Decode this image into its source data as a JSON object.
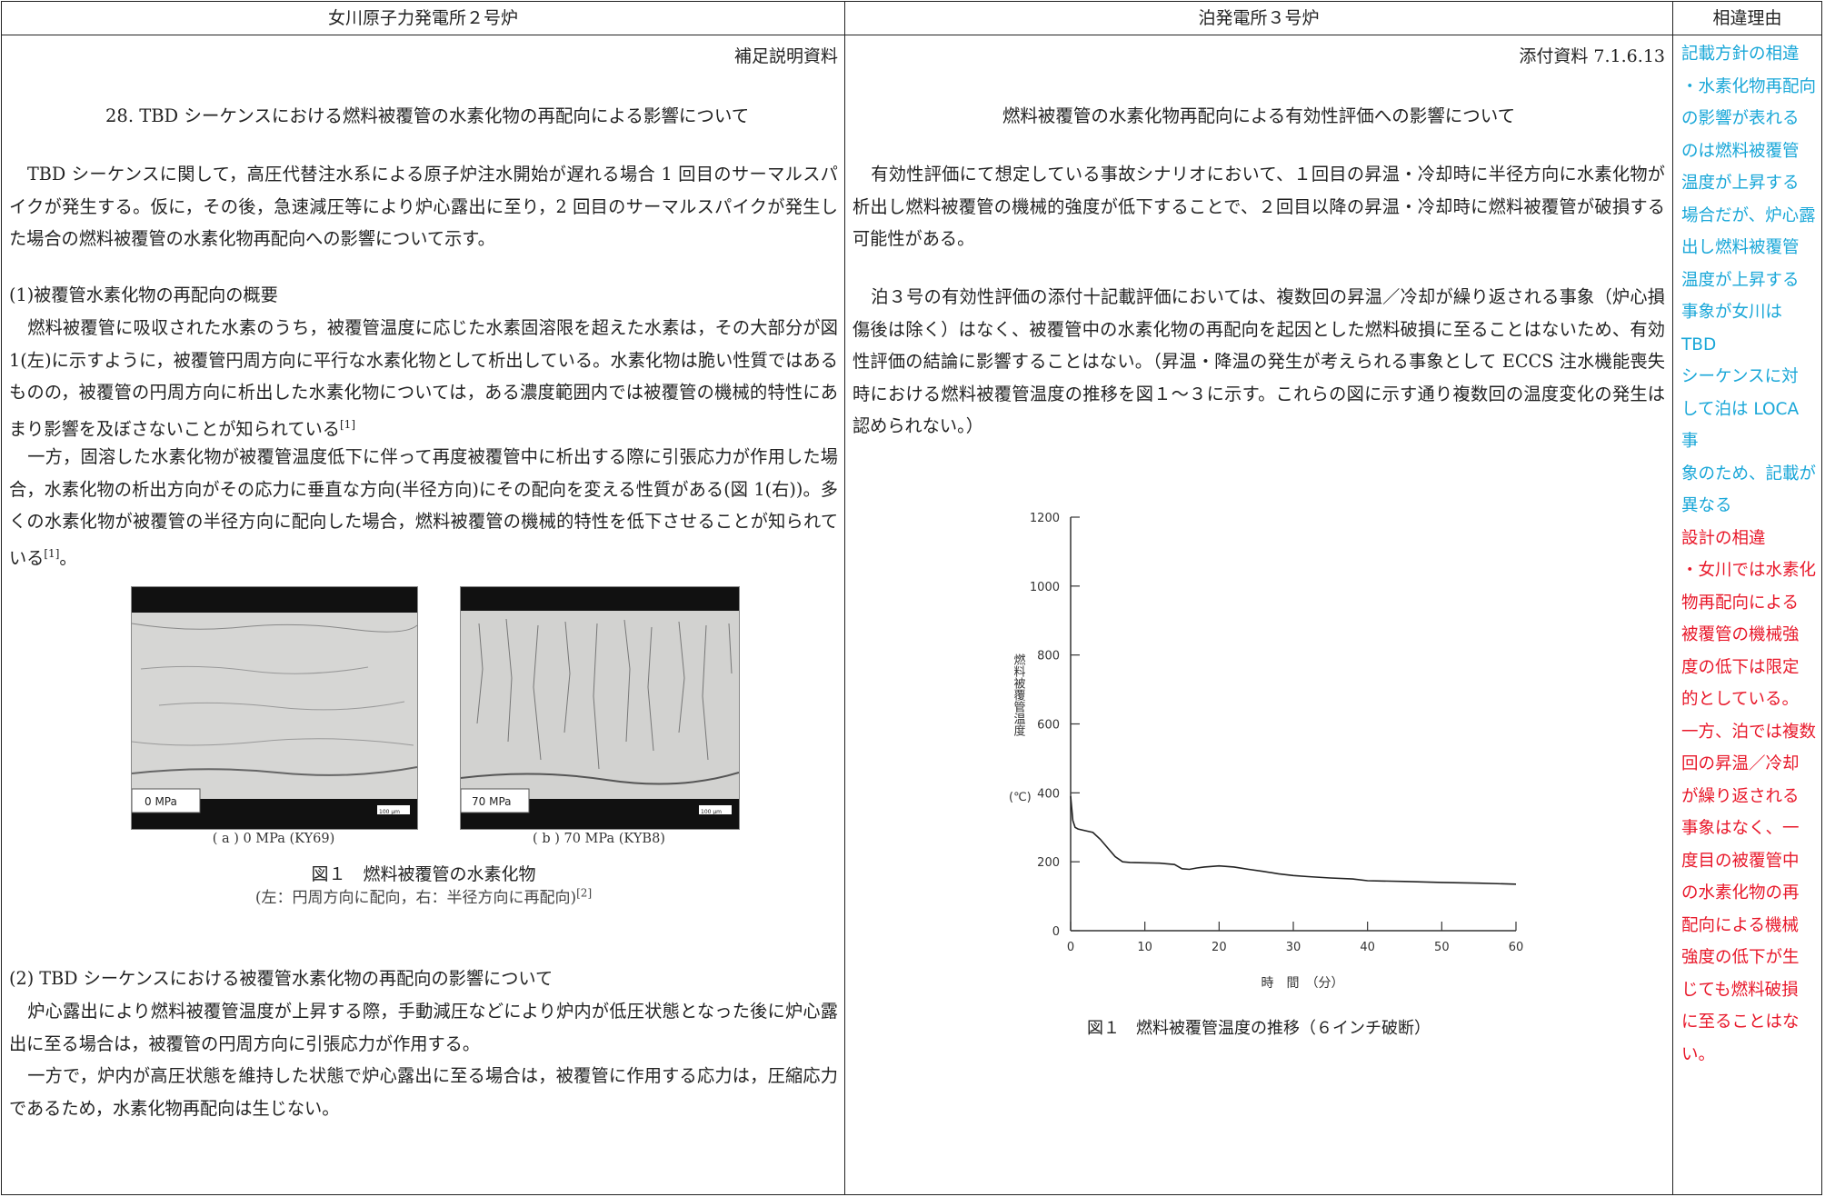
{
  "header": {
    "col1": "女川原子力発電所２号炉",
    "col2": "泊発電所３号炉",
    "col3": "相違理由"
  },
  "left": {
    "supplementary_label": "補足説明資料",
    "title": "28. TBD シーケンスにおける燃料被覆管の水素化物の再配向による影響について",
    "intro": "TBD シーケンスに関して，高圧代替注水系による原子炉注水開始が遅れる場合 1 回目のサーマルスパイクが発生する。仮に，その後，急速減圧等により炉心露出に至り，2 回目のサーマルスパイクが発生した場合の燃料被覆管の水素化物再配向への影響について示す。",
    "section1_heading": "(1)被覆管水素化物の再配向の概要",
    "section1_p1": "燃料被覆管に吸収された水素のうち，被覆管温度に応じた水素固溶限を超えた水素は，その大部分が図 1(左)に示すように，被覆管円周方向に平行な水素化物として析出している。水素化物は脆い性質ではあるものの，被覆管の円周方向に析出した水素化物については，ある濃度範囲内では被覆管の機械的特性にあまり影響を及ぼさないことが知られている",
    "section1_p1_ref": "[1]",
    "section1_p2": "一方，固溶した水素化物が被覆管温度低下に伴って再度被覆管中に析出する際に引張応力が作用した場合，水素化物の析出方向がその応力に垂直な方向(半径方向)にその配向を変える性質がある(図 1(右))。多くの水素化物が被覆管の半径方向に配向した場合，燃料被覆管の機械的特性を低下させることが知られている",
    "section1_p2_ref": "[1]",
    "section1_p2_end": "。",
    "figure": {
      "panel_a_tag": "0 MPa",
      "panel_b_tag": "70 MPa",
      "scale_a": "100 μm",
      "scale_b": "100 μm",
      "caption_a": "( a )  0 MPa (KY69)",
      "caption_b": "( b )  70 MPa (KYB8)",
      "caption": "図１　燃料被覆管の水素化物",
      "subcaption": "(左：円周方向に配向，右：半径方向に再配向)",
      "subcaption_ref": "[2]"
    },
    "section2_heading": "(2) TBD シーケンスにおける被覆管水素化物の再配向の影響について",
    "section2_p1": "炉心露出により燃料被覆管温度が上昇する際，手動減圧などにより炉内が低圧状態となった後に炉心露出に至る場合は，被覆管の円周方向に引張応力が作用する。",
    "section2_p2": "一方で，炉内が高圧状態を維持した状態で炉心露出に至る場合は，被覆管に作用する応力は，圧縮応力であるため，水素化物再配向は生じない。"
  },
  "middle": {
    "attachment_label": "添付資料 7.1.6.13",
    "title": "燃料被覆管の水素化物再配向による有効性評価への影響について",
    "p1": "有効性評価にて想定している事故シナリオにおいて、１回目の昇温・冷却時に半径方向に水素化物が析出し燃料被覆管の機械的強度が低下することで、２回目以降の昇温・冷却時に燃料被覆管が破損する可能性がある。",
    "p2": "泊３号の有効性評価の添付十記載評価においては、複数回の昇温／冷却が繰り返される事象（炉心損傷後は除く）はなく、被覆管中の水素化物の再配向を起因とした燃料破損に至ることはないため、有効性評価の結論に影響することはない。（昇温・降温の発生が考えられる事象として ECCS 注水機能喪失時における燃料被覆管温度の推移を図１～３に示す。これらの図に示す通り複数回の温度変化の発生は認められない。）",
    "chart_caption": "図１　燃料被覆管温度の推移（６インチ破断）"
  },
  "right": {
    "lines": [
      {
        "text": "記載方針の相違",
        "color": "cyan"
      },
      {
        "text": "・水素化物再配向",
        "color": "cyan"
      },
      {
        "text": "の影響が表れる",
        "color": "cyan"
      },
      {
        "text": "のは燃料被覆管",
        "color": "cyan"
      },
      {
        "text": "温度が上昇する",
        "color": "cyan"
      },
      {
        "text": "場合だが、炉心露",
        "color": "cyan"
      },
      {
        "text": "出し燃料被覆管",
        "color": "cyan"
      },
      {
        "text": "温度が上昇する",
        "color": "cyan"
      },
      {
        "text": "事象が女川は TBD",
        "color": "cyan"
      },
      {
        "text": "シーケンスに対",
        "color": "cyan"
      },
      {
        "text": "して泊は LOCA 事",
        "color": "cyan"
      },
      {
        "text": "象のため、記載が",
        "color": "cyan"
      },
      {
        "text": "異なる",
        "color": "cyan"
      },
      {
        "text": "設計の相違",
        "color": "red"
      },
      {
        "text": "・女川では水素化",
        "color": "red"
      },
      {
        "text": "物再配向による",
        "color": "red"
      },
      {
        "text": "被覆管の機械強",
        "color": "red"
      },
      {
        "text": "度の低下は限定",
        "color": "red"
      },
      {
        "text": "的としている。",
        "color": "red"
      },
      {
        "text": "一方、泊では複数",
        "color": "red"
      },
      {
        "text": "回の昇温／冷却",
        "color": "red"
      },
      {
        "text": "が繰り返される",
        "color": "red"
      },
      {
        "text": "事象はなく、一",
        "color": "red"
      },
      {
        "text": "度目の被覆管中",
        "color": "red"
      },
      {
        "text": "の水素化物の再",
        "color": "red"
      },
      {
        "text": "配向による機械",
        "color": "red"
      },
      {
        "text": "強度の低下が生",
        "color": "red"
      },
      {
        "text": "じても燃料破損",
        "color": "red"
      },
      {
        "text": "に至ることはな",
        "color": "red"
      },
      {
        "text": "い。",
        "color": "red"
      }
    ]
  },
  "colors": {
    "cyan": "#1aa7d8",
    "red": "#e8182a"
  },
  "chart_data": {
    "type": "line",
    "title": "",
    "xlabel": "時　間　（分）",
    "ylabel_vertical": "燃料被覆管温度",
    "ylabel_unit": "(℃)",
    "xlim": [
      0,
      60
    ],
    "ylim": [
      0,
      1200
    ],
    "xticks": [
      0,
      10,
      20,
      30,
      40,
      50,
      60
    ],
    "yticks": [
      0,
      200,
      400,
      600,
      800,
      1000,
      1200
    ],
    "series": [
      {
        "x": [
          0,
          0.3,
          0.6,
          1,
          2,
          3,
          4,
          5,
          6,
          7,
          8,
          10,
          12,
          14,
          15,
          16,
          17,
          18,
          20,
          22,
          24,
          26,
          28,
          30,
          32,
          35,
          38,
          40,
          45,
          50,
          55,
          60
        ],
        "y": [
          390,
          320,
          300,
          295,
          290,
          285,
          265,
          240,
          215,
          200,
          198,
          197,
          196,
          192,
          180,
          178,
          182,
          185,
          188,
          185,
          178,
          172,
          165,
          160,
          157,
          153,
          150,
          145,
          143,
          140,
          138,
          135
        ]
      }
    ]
  }
}
